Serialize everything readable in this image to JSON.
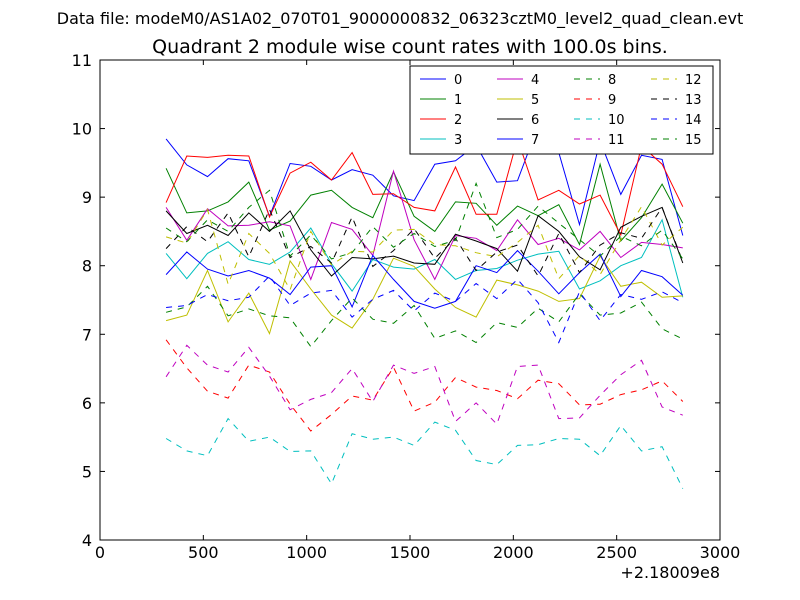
{
  "header": {
    "suptitle": "Data file: modeM0/AS1A02_070T01_9000000832_06323cztM0_level2_quad_clean.evt",
    "title": "Quadrant 2 module wise count rates with 100.0s bins."
  },
  "chart_data": {
    "type": "line",
    "title": "Quadrant 2 module wise count rates with 100.0s bins.",
    "xlabel": "",
    "ylabel": "",
    "xlim": [
      0,
      3000
    ],
    "ylim": [
      4,
      11
    ],
    "x_ticks": [
      0,
      500,
      1000,
      1500,
      2000,
      2500,
      3000
    ],
    "y_ticks": [
      4,
      5,
      6,
      7,
      8,
      9,
      10,
      11
    ],
    "x_offset_label": "+2.18009e8",
    "grid": false,
    "legend_placement": "top-right",
    "legend_columns": 4,
    "x": [
      320,
      420,
      520,
      620,
      720,
      820,
      920,
      1020,
      1120,
      1220,
      1320,
      1420,
      1520,
      1620,
      1720,
      1820,
      1920,
      2020,
      2120,
      2220,
      2320,
      2420,
      2520,
      2620,
      2720,
      2820
    ],
    "series": [
      {
        "name": "0",
        "color": "#0000ff",
        "style": "solid",
        "values": [
          9.85,
          9.47,
          9.3,
          9.56,
          9.53,
          8.72,
          9.49,
          9.45,
          9.25,
          9.4,
          9.32,
          9.02,
          8.95,
          9.48,
          9.53,
          9.76,
          9.22,
          9.24,
          10.04,
          9.65,
          8.6,
          9.82,
          9.04,
          9.61,
          9.55,
          8.44
        ]
      },
      {
        "name": "1",
        "color": "#008000",
        "style": "solid",
        "values": [
          9.42,
          8.77,
          8.8,
          8.93,
          9.22,
          8.52,
          8.65,
          9.03,
          9.1,
          8.85,
          8.7,
          9.37,
          8.72,
          8.5,
          8.93,
          8.91,
          8.59,
          8.87,
          8.73,
          8.89,
          8.31,
          9.48,
          8.36,
          8.7,
          9.19,
          8.62
        ]
      },
      {
        "name": "2",
        "color": "#ff0000",
        "style": "solid",
        "values": [
          8.92,
          9.6,
          9.58,
          9.61,
          9.6,
          8.71,
          9.35,
          9.51,
          9.25,
          9.65,
          9.04,
          9.05,
          8.85,
          8.8,
          9.44,
          8.75,
          8.75,
          9.85,
          8.96,
          9.1,
          8.9,
          9.03,
          8.45,
          9.75,
          9.48,
          8.86
        ]
      },
      {
        "name": "3",
        "color": "#00bfbf",
        "style": "solid",
        "values": [
          8.18,
          7.81,
          8.18,
          8.35,
          8.09,
          8.02,
          8.2,
          8.55,
          8.03,
          7.63,
          8.09,
          7.98,
          7.95,
          8.09,
          7.8,
          7.93,
          7.96,
          8.08,
          8.17,
          8.21,
          7.66,
          7.78,
          8.0,
          8.12,
          8.67,
          7.54
        ]
      },
      {
        "name": "4",
        "color": "#bf00bf",
        "style": "solid",
        "values": [
          8.85,
          8.37,
          8.83,
          8.58,
          8.59,
          8.64,
          8.58,
          7.8,
          8.63,
          8.53,
          8.15,
          9.38,
          8.38,
          7.8,
          8.44,
          8.4,
          8.22,
          8.67,
          8.31,
          8.4,
          8.23,
          8.5,
          8.12,
          8.34,
          8.31,
          8.26
        ]
      },
      {
        "name": "5",
        "color": "#bfbf00",
        "style": "solid",
        "values": [
          7.2,
          7.28,
          7.93,
          7.18,
          7.6,
          7.01,
          8.07,
          7.66,
          7.28,
          7.09,
          7.51,
          8.11,
          7.99,
          7.66,
          7.39,
          7.25,
          7.79,
          7.72,
          7.63,
          7.48,
          7.52,
          8.14,
          7.7,
          7.76,
          7.54,
          7.56
        ]
      },
      {
        "name": "6",
        "color": "#000000",
        "style": "solid",
        "values": [
          8.8,
          8.47,
          8.59,
          8.44,
          8.77,
          8.5,
          8.8,
          8.23,
          7.85,
          8.12,
          8.1,
          8.14,
          8.04,
          8.02,
          8.46,
          8.36,
          8.25,
          7.92,
          8.73,
          8.5,
          8.13,
          7.94,
          8.56,
          8.72,
          8.85,
          8.04
        ]
      },
      {
        "name": "7",
        "color": "#0000ff",
        "style": "solid",
        "values": [
          7.87,
          8.2,
          7.95,
          7.85,
          7.93,
          7.82,
          7.58,
          7.98,
          8.0,
          7.4,
          8.15,
          7.8,
          7.48,
          7.38,
          7.48,
          8.0,
          7.9,
          8.22,
          7.92,
          7.59,
          7.9,
          8.17,
          7.55,
          7.93,
          7.84,
          7.57
        ]
      },
      {
        "name": "8",
        "color": "#008000",
        "style": "dashed",
        "values": [
          7.32,
          7.4,
          7.7,
          7.27,
          7.37,
          7.27,
          7.24,
          6.82,
          7.2,
          7.53,
          7.22,
          7.16,
          7.42,
          6.94,
          7.05,
          6.88,
          7.17,
          7.1,
          7.38,
          7.18,
          7.59,
          7.28,
          7.31,
          7.47,
          7.08,
          6.93
        ]
      },
      {
        "name": "9",
        "color": "#ff0000",
        "style": "dashed",
        "values": [
          6.92,
          6.51,
          6.17,
          6.07,
          6.55,
          6.45,
          5.98,
          5.59,
          5.83,
          6.1,
          6.04,
          6.52,
          5.88,
          6.01,
          6.37,
          6.23,
          6.18,
          6.06,
          6.33,
          6.28,
          5.97,
          5.98,
          6.12,
          6.19,
          6.32,
          6.02
        ]
      },
      {
        "name": "10",
        "color": "#00bfbf",
        "style": "dashed",
        "values": [
          5.48,
          5.3,
          5.23,
          5.77,
          5.44,
          5.5,
          5.29,
          5.3,
          4.82,
          5.55,
          5.47,
          5.5,
          5.38,
          5.72,
          5.6,
          5.16,
          5.1,
          5.38,
          5.39,
          5.48,
          5.47,
          5.23,
          5.67,
          5.3,
          5.36,
          4.75
        ]
      },
      {
        "name": "11",
        "color": "#bf00bf",
        "style": "dashed",
        "values": [
          6.38,
          6.84,
          6.55,
          6.45,
          6.81,
          6.39,
          5.9,
          6.05,
          6.15,
          6.5,
          6.02,
          6.55,
          6.43,
          6.53,
          5.73,
          6.0,
          5.69,
          6.53,
          6.55,
          5.77,
          5.78,
          6.11,
          6.41,
          6.62,
          5.94,
          5.82
        ]
      },
      {
        "name": "12",
        "color": "#bfbf00",
        "style": "dashed",
        "values": [
          8.42,
          8.33,
          8.82,
          7.73,
          8.47,
          8.18,
          7.65,
          8.5,
          8.01,
          8.21,
          8.2,
          8.52,
          8.53,
          8.31,
          8.29,
          8.19,
          8.13,
          8.34,
          8.59,
          7.81,
          8.15,
          7.87,
          8.38,
          8.86,
          8.3,
          8.56
        ]
      },
      {
        "name": "13",
        "color": "#000000",
        "style": "dashed",
        "values": [
          8.25,
          8.57,
          8.35,
          8.77,
          8.13,
          8.82,
          8.12,
          8.28,
          8.04,
          8.71,
          7.99,
          8.22,
          8.54,
          8.11,
          8.4,
          7.93,
          8.2,
          8.3,
          7.85,
          8.47,
          7.9,
          8.3,
          8.48,
          8.4,
          8.85,
          8.06
        ]
      },
      {
        "name": "14",
        "color": "#0000ff",
        "style": "dashed",
        "values": [
          7.39,
          7.42,
          7.58,
          7.49,
          7.54,
          7.85,
          7.42,
          7.6,
          7.64,
          7.25,
          7.51,
          7.64,
          7.34,
          7.6,
          7.48,
          7.74,
          7.52,
          7.8,
          7.46,
          6.88,
          7.62,
          7.2,
          7.58,
          7.51,
          7.62,
          7.46
        ]
      },
      {
        "name": "15",
        "color": "#008000",
        "style": "dashed",
        "values": [
          8.55,
          8.35,
          8.67,
          8.5,
          8.85,
          9.1,
          8.14,
          8.45,
          8.1,
          8.19,
          8.57,
          8.27,
          8.47,
          8.28,
          8.37,
          9.2,
          8.41,
          8.53,
          8.87,
          8.62,
          8.38,
          8.14,
          8.43,
          8.29,
          8.52,
          8.1
        ]
      }
    ]
  }
}
